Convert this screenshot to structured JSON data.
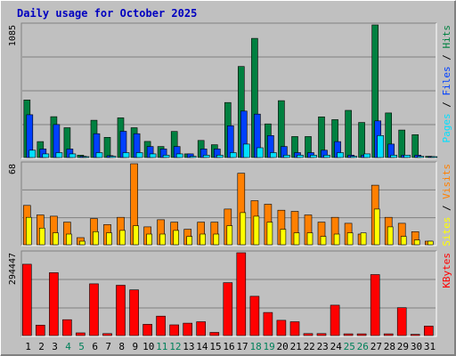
{
  "chart_data": [
    {
      "type": "bar",
      "title": "Daily usage for October 2025",
      "ymax_label": "1085",
      "ylim": [
        0,
        1085
      ],
      "grid": true,
      "legend": [
        "Pages",
        "Files",
        "Hits"
      ],
      "categories": [
        "1",
        "2",
        "3",
        "4",
        "5",
        "6",
        "7",
        "8",
        "9",
        "10",
        "11",
        "12",
        "13",
        "14",
        "15",
        "16",
        "17",
        "18",
        "19",
        "20",
        "21",
        "22",
        "23",
        "24",
        "25",
        "26",
        "27",
        "28",
        "29",
        "30",
        "31"
      ],
      "weekend_days": [
        "4",
        "5",
        "11",
        "12",
        "18",
        "19",
        "25",
        "26"
      ],
      "series": [
        {
          "name": "Hits",
          "color": "#008040",
          "values": [
            471,
            130,
            334,
            244,
            20,
            305,
            165,
            325,
            244,
            132,
            90,
            213,
            30,
            140,
            105,
            450,
            745,
            975,
            275,
            465,
            172,
            172,
            333,
            310,
            386,
            287,
            1085,
            365,
            225,
            187,
            10
          ]
        },
        {
          "name": "Files",
          "color": "#0040ff",
          "values": [
            350,
            70,
            270,
            70,
            10,
            195,
            15,
            215,
            195,
            90,
            70,
            90,
            30,
            70,
            70,
            260,
            380,
            355,
            180,
            90,
            40,
            40,
            60,
            130,
            20,
            20,
            300,
            110,
            20,
            20,
            5
          ]
        },
        {
          "name": "Pages",
          "color": "#00e0ff",
          "values": [
            60,
            30,
            40,
            30,
            5,
            40,
            10,
            40,
            40,
            30,
            20,
            30,
            10,
            20,
            20,
            40,
            110,
            80,
            40,
            20,
            20,
            20,
            20,
            40,
            10,
            30,
            180,
            20,
            20,
            10,
            5
          ]
        }
      ]
    },
    {
      "type": "bar",
      "ymax_label": "68",
      "ylim": [
        0,
        68
      ],
      "grid": true,
      "legend": [
        "Sites",
        "Visits"
      ],
      "categories": [
        "1",
        "2",
        "3",
        "4",
        "5",
        "6",
        "7",
        "8",
        "9",
        "10",
        "11",
        "12",
        "13",
        "14",
        "15",
        "16",
        "17",
        "18",
        "19",
        "20",
        "21",
        "22",
        "23",
        "24",
        "25",
        "26",
        "27",
        "28",
        "29",
        "30",
        "31"
      ],
      "series": [
        {
          "name": "Visits",
          "color": "#ff8000",
          "values": [
            33,
            25,
            24,
            19,
            6,
            22,
            17,
            23,
            68,
            15,
            21,
            19,
            13,
            19,
            19,
            30,
            60,
            37,
            34,
            29,
            28,
            25,
            19,
            23,
            18,
            9,
            50,
            23,
            18,
            11,
            3
          ]
        },
        {
          "name": "Sites",
          "color": "#ffff00",
          "values": [
            23,
            14,
            10,
            9,
            3,
            11,
            10,
            12,
            16,
            9,
            9,
            12,
            7,
            9,
            9,
            16,
            27,
            24,
            19,
            13,
            10,
            10,
            7,
            9,
            10,
            10,
            30,
            15,
            7,
            4,
            3
          ]
        }
      ]
    },
    {
      "type": "bar",
      "ymax_label": "294447",
      "ylim": [
        0,
        294447
      ],
      "grid": true,
      "legend": [
        "KBytes"
      ],
      "categories": [
        "1",
        "2",
        "3",
        "4",
        "5",
        "6",
        "7",
        "8",
        "9",
        "10",
        "11",
        "12",
        "13",
        "14",
        "15",
        "16",
        "17",
        "18",
        "19",
        "20",
        "21",
        "22",
        "23",
        "24",
        "25",
        "26",
        "27",
        "28",
        "29",
        "30",
        "31"
      ],
      "series": [
        {
          "name": "KBytes",
          "color": "#ff0000",
          "values": [
            253500,
            37000,
            223500,
            56500,
            9500,
            184000,
            7000,
            179000,
            162500,
            40000,
            69000,
            38000,
            44000,
            49000,
            11000,
            188000,
            294447,
            139500,
            82000,
            54000,
            49000,
            7000,
            7000,
            108000,
            6000,
            6000,
            217000,
            6000,
            99000,
            4000,
            33500
          ]
        }
      ]
    }
  ]
}
